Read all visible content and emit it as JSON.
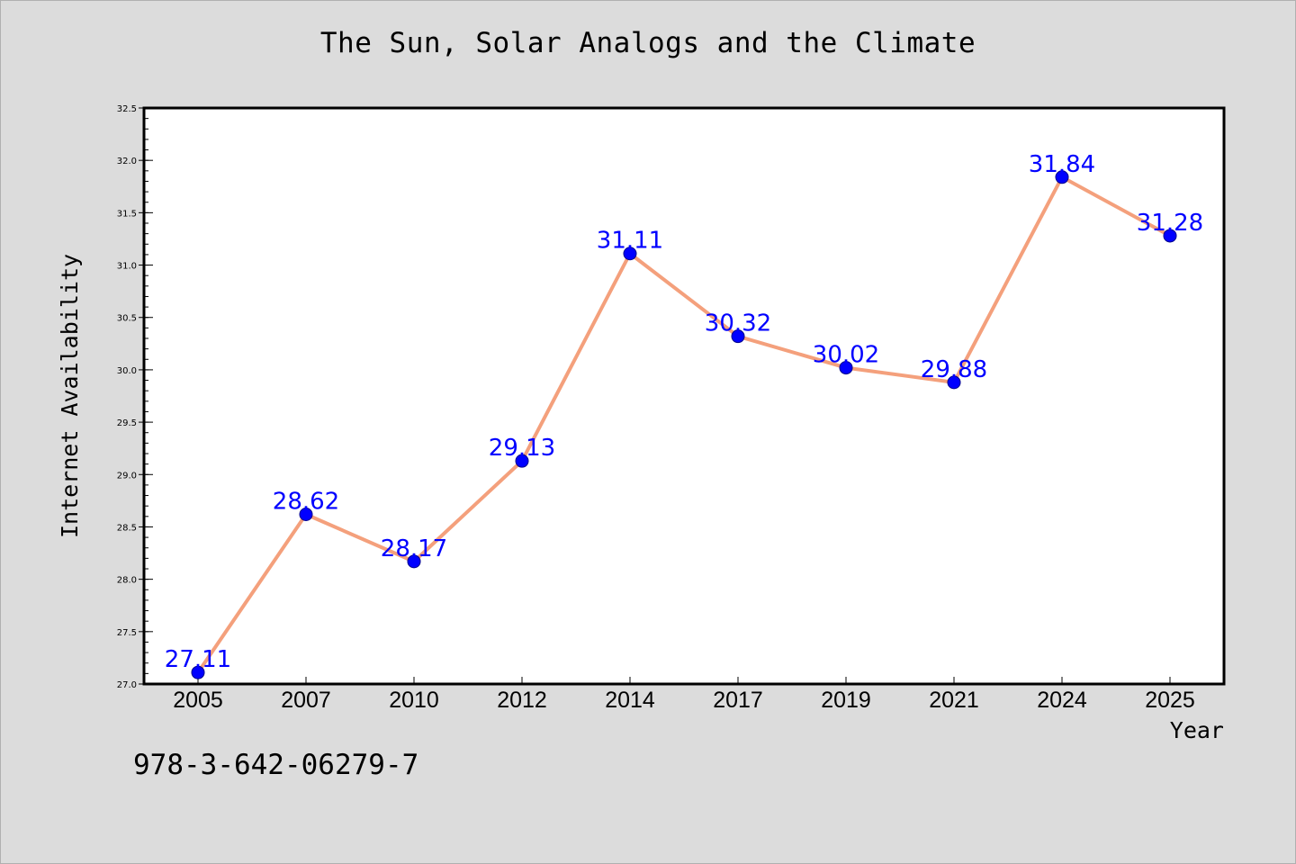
{
  "title": "The Sun, Solar Analogs and the Climate",
  "isbn": "978-3-642-06279-7",
  "colors": {
    "background": "#dcdcdc",
    "plot_background": "#ffffff",
    "line": "#f4a07c",
    "marker": "#0000ff",
    "point_label": "#0000ff"
  },
  "chart_data": {
    "type": "line",
    "title": "The Sun, Solar Analogs and the Climate",
    "xlabel": "Year",
    "ylabel": "Internet Availability",
    "categories": [
      "2005",
      "2007",
      "2010",
      "2012",
      "2014",
      "2017",
      "2019",
      "2021",
      "2024",
      "2025"
    ],
    "values": [
      27.11,
      28.62,
      28.17,
      29.13,
      31.11,
      30.32,
      30.02,
      29.88,
      31.84,
      31.28
    ],
    "data_labels": [
      "27.11",
      "28.62",
      "28.17",
      "29.13",
      "31.11",
      "30.32",
      "30.02",
      "29.88",
      "31.84",
      "31.28"
    ],
    "ylim": [
      27.0,
      32.5
    ],
    "yticks": [
      "27.0",
      "27.5",
      "28.0",
      "28.5",
      "29.0",
      "29.5",
      "30.0",
      "30.5",
      "31.0",
      "31.5",
      "32.0",
      "32.5"
    ],
    "grid": false,
    "legend": "none"
  }
}
